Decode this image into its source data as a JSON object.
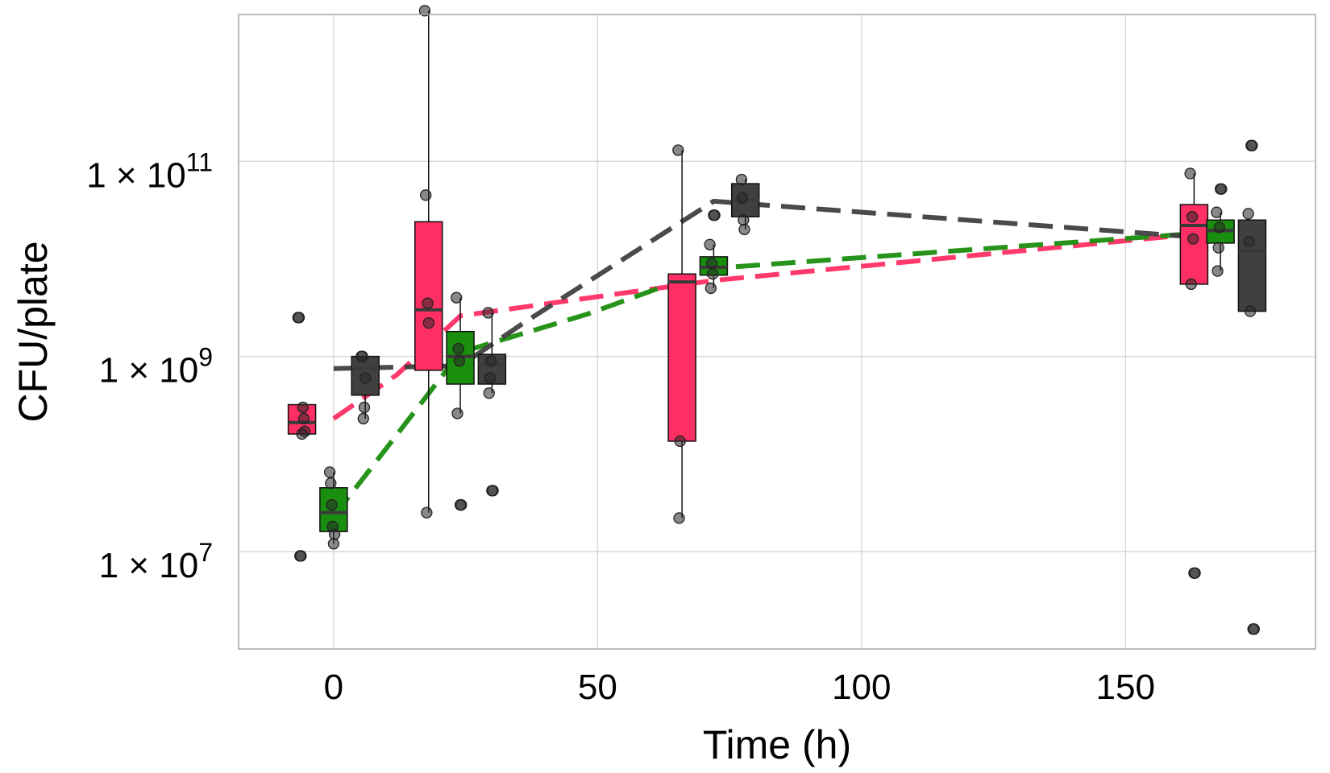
{
  "chart_data": {
    "type": "box",
    "title": "",
    "xlabel": "Time (h)",
    "ylabel": "CFU/plate",
    "x_scale": "linear",
    "y_scale": "log10",
    "xlim": [
      -18,
      186
    ],
    "ylim": [
      1000000.0,
      3200000000000.0
    ],
    "x_ticks": [
      0,
      50,
      100,
      150
    ],
    "x_tick_labels": [
      "0",
      "50",
      "100",
      "150"
    ],
    "y_ticks": [
      10000000.0,
      1000000000.0,
      100000000000.0
    ],
    "y_tick_labels": [
      {
        "base": "1 × 10",
        "exp": "7"
      },
      {
        "base": "1 × 10",
        "exp": "9"
      },
      {
        "base": "1 × 10",
        "exp": "11"
      }
    ],
    "grid": true,
    "legend": "none",
    "series": [
      {
        "color": "#FF2E63",
        "trend": [
          [
            0,
            230000000.0
          ],
          [
            12,
            650000000.0
          ],
          [
            24,
            2600000000.0
          ],
          [
            72,
            6000000000.0
          ],
          [
            168,
            19000000000.0
          ]
        ],
        "boxes": [
          {
            "x": -6,
            "q1": 160000000.0,
            "median": 210000000.0,
            "q3": 320000000.0,
            "whisker_low": 160000000.0,
            "whisker_high": 320000000.0,
            "points": [
              2500000000.0,
              2500000000.0,
              9000000.0,
              9000000.0,
              160000000.0,
              300000000.0,
              230000000.0,
              170000000.0
            ]
          },
          {
            "x": 18,
            "q1": 720000000.0,
            "median": 3000000000.0,
            "q3": 24000000000.0,
            "whisker_low": 25000000.0,
            "whisker_high": 3500000000000.0,
            "points": [
              3500000000000.0,
              45000000000.0,
              25000000.0,
              3500000000.0,
              2200000000.0
            ]
          },
          {
            "x": 66,
            "q1": 135000000.0,
            "median": 5800000000.0,
            "q3": 7000000000.0,
            "whisker_low": 22000000.0,
            "whisker_high": 130000000000.0,
            "points": [
              130000000000.0,
              22000000.0,
              135000000.0
            ]
          },
          {
            "x": 163,
            "q1": 5500000000.0,
            "median": 22000000000.0,
            "q3": 36000000000.0,
            "whisker_low": 5500000000.0,
            "whisker_high": 75000000000.0,
            "points": [
              75000000000.0,
              5500000000.0,
              27000000000.0,
              16000000000.0,
              6000000.0,
              6000000.0
            ]
          }
        ]
      },
      {
        "color": "#1A8E0E",
        "trend": [
          [
            0,
            23000000.0
          ],
          [
            6,
            60000000.0
          ],
          [
            24,
            1100000000.0
          ],
          [
            48,
            2700000000.0
          ],
          [
            72,
            8000000000.0
          ],
          [
            168,
            19000000000.0
          ]
        ],
        "boxes": [
          {
            "x": 0,
            "q1": 16000000.0,
            "median": 25000000.0,
            "q3": 45000000.0,
            "whisker_low": 12000000.0,
            "whisker_high": 65000000.0,
            "points": [
              65000000.0,
              50000000.0,
              30000000.0,
              18000000.0,
              12000000.0,
              15000000.0
            ]
          },
          {
            "x": 24,
            "q1": 520000000.0,
            "median": 1000000000.0,
            "q3": 1800000000.0,
            "whisker_low": 260000000.0,
            "whisker_high": 4000000000.0,
            "points": [
              4000000000.0,
              260000000.0,
              1200000000.0,
              900000000.0,
              30000000.0,
              30000000.0
            ]
          },
          {
            "x": 72,
            "q1": 6800000000.0,
            "median": 8200000000.0,
            "q3": 10500000000.0,
            "whisker_low": 5000000000.0,
            "whisker_high": 14000000000.0,
            "points": [
              14000000000.0,
              5000000000.0,
              9000000000.0,
              7000000000.0,
              28000000000.0,
              28000000000.0
            ]
          },
          {
            "x": 168,
            "q1": 14500000000.0,
            "median": 19500000000.0,
            "q3": 25000000000.0,
            "whisker_low": 7500000000.0,
            "whisker_high": 30000000000.0,
            "points": [
              30000000000.0,
              7500000000.0,
              13000000000.0,
              21000000000.0,
              52000000000.0,
              52000000000.0
            ]
          }
        ]
      },
      {
        "color": "#404040",
        "trend": [
          [
            0,
            750000000.0
          ],
          [
            24,
            800000000.0
          ],
          [
            36,
            2200000000.0
          ],
          [
            72,
            39000000000.0
          ],
          [
            168,
            16000000000.0
          ]
        ],
        "boxes": [
          {
            "x": 6,
            "q1": 400000000.0,
            "median": 750000000.0,
            "q3": 1000000000.0,
            "whisker_low": 230000000.0,
            "whisker_high": 1000000000.0,
            "points": [
              1000000000.0,
              1000000000.0,
              230000000.0,
              300000000.0,
              600000000.0
            ]
          },
          {
            "x": 30,
            "q1": 520000000.0,
            "median": 820000000.0,
            "q3": 1050000000.0,
            "whisker_low": 420000000.0,
            "whisker_high": 2800000000.0,
            "points": [
              2800000000.0,
              420000000.0,
              600000000.0,
              900000000.0,
              42000000.0,
              42000000.0
            ]
          },
          {
            "x": 78,
            "q1": 27000000000.0,
            "median": 40000000000.0,
            "q3": 59000000000.0,
            "whisker_low": 20000000000.0,
            "whisker_high": 65000000000.0,
            "points": [
              65000000000.0,
              42000000000.0,
              25000000000.0,
              20000000000.0
            ]
          },
          {
            "x": 174,
            "q1": 2900000000.0,
            "median": 12000000000.0,
            "q3": 25000000000.0,
            "whisker_low": 2900000000.0,
            "whisker_high": 25000000000.0,
            "points": [
              29000000000.0,
              15000000000.0,
              2900000000.0,
              145000000000.0,
              145000000000.0,
              1600000.0,
              1600000.0
            ]
          }
        ]
      }
    ]
  }
}
